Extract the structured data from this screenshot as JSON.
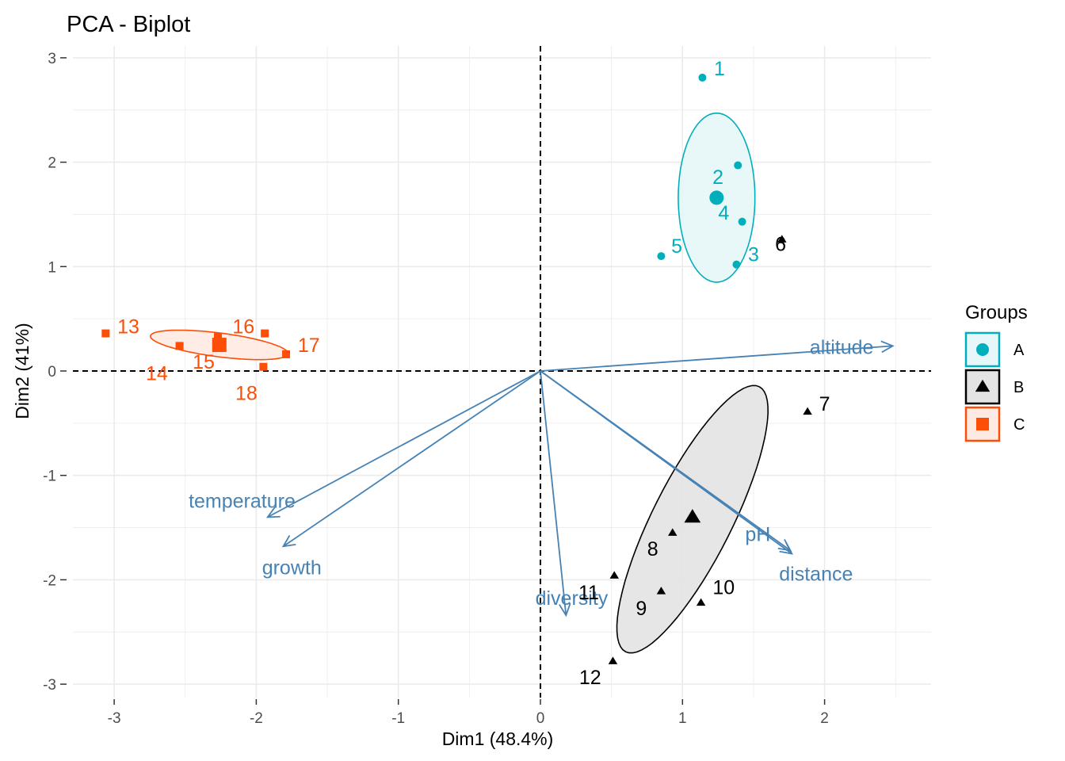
{
  "chart_data": {
    "type": "scatter",
    "subtype": "pca-biplot",
    "title": "PCA - Biplot",
    "xlabel": "Dim1 (48.4%)",
    "ylabel": "Dim2 (41%)",
    "xlim": [
      -3.3,
      2.7
    ],
    "ylim": [
      -3.1,
      3.2
    ],
    "x_ticks": [
      -3,
      -2,
      -1,
      0,
      1,
      2
    ],
    "y_ticks": [
      -3,
      -2,
      -1,
      0,
      1,
      2,
      3
    ],
    "grid": true,
    "reference_lines": {
      "x": 0,
      "y": 0,
      "style": "dashed"
    },
    "legend": {
      "title": "Groups",
      "placement": "right",
      "entries": [
        {
          "label": "A",
          "shape": "circle",
          "color": "#00AFBB"
        },
        {
          "label": "B",
          "shape": "triangle",
          "color": "#000000"
        },
        {
          "label": "C",
          "shape": "square",
          "color": "#FC4E07"
        }
      ]
    },
    "groups": [
      {
        "name": "A",
        "color": "#00AFBB",
        "fill": "#e5f7f8",
        "shape": "circle",
        "points": [
          {
            "label": "1",
            "x": 1.14,
            "y": 2.81,
            "lx": 1.26,
            "ly": 2.9
          },
          {
            "label": "2",
            "x": 1.39,
            "y": 1.97,
            "lx": 1.25,
            "ly": 1.86
          },
          {
            "label": "3",
            "x": 1.38,
            "y": 1.02,
            "lx": 1.5,
            "ly": 1.12
          },
          {
            "label": "4",
            "x": 1.42,
            "y": 1.43,
            "lx": 1.29,
            "ly": 1.52
          },
          {
            "label": "5",
            "x": 0.85,
            "y": 1.1,
            "lx": 0.96,
            "ly": 1.2
          }
        ],
        "centroid": {
          "x": 1.24,
          "y": 1.66
        },
        "ellipse": {
          "center": [
            1.24,
            1.66
          ],
          "major": [
            0.0,
            0.81
          ],
          "minor": [
            0.27,
            0.0
          ]
        }
      },
      {
        "name": "B",
        "color": "#000000",
        "fill": "#e3e3e3",
        "shape": "triangle",
        "points": [
          {
            "label": "6",
            "x": 1.7,
            "y": 1.26,
            "lx": 1.69,
            "ly": 1.22
          },
          {
            "label": "7",
            "x": 1.88,
            "y": -0.39,
            "lx": 2.0,
            "ly": -0.31
          },
          {
            "label": "8",
            "x": 0.93,
            "y": -1.55,
            "lx": 0.79,
            "ly": -1.7
          },
          {
            "label": "9",
            "x": 0.85,
            "y": -2.11,
            "lx": 0.71,
            "ly": -2.27
          },
          {
            "label": "10",
            "x": 1.13,
            "y": -2.22,
            "lx": 1.29,
            "ly": -2.07
          },
          {
            "label": "11",
            "x": 0.52,
            "y": -1.96,
            "lx": 0.34,
            "ly": -2.12
          },
          {
            "label": "12",
            "x": 0.51,
            "y": -2.78,
            "lx": 0.35,
            "ly": -2.93
          }
        ],
        "centroid": {
          "x": 1.07,
          "y": -1.4
        },
        "ellipse": {
          "center": [
            1.07,
            -1.42
          ],
          "major": [
            0.47,
            1.27
          ],
          "minor": [
            0.249,
            -0.17
          ]
        }
      },
      {
        "name": "C",
        "color": "#FC4E07",
        "fill": "#feeae2",
        "shape": "square",
        "points": [
          {
            "label": "13",
            "x": -3.06,
            "y": 0.36,
            "lx": -2.9,
            "ly": 0.43
          },
          {
            "label": "14",
            "x": -2.54,
            "y": 0.24,
            "lx": -2.7,
            "ly": -0.02
          },
          {
            "label": "15",
            "x": -2.27,
            "y": 0.33,
            "lx": -2.37,
            "ly": 0.09
          },
          {
            "label": "16",
            "x": -1.94,
            "y": 0.36,
            "lx": -2.09,
            "ly": 0.43
          },
          {
            "label": "17",
            "x": -1.79,
            "y": 0.16,
            "lx": -1.63,
            "ly": 0.25
          },
          {
            "label": "18",
            "x": -1.95,
            "y": 0.04,
            "lx": -2.07,
            "ly": -0.21
          }
        ],
        "centroid": {
          "x": -2.26,
          "y": 0.25
        },
        "ellipse": {
          "center": [
            -2.26,
            0.25
          ],
          "major": [
            0.485,
            -0.085
          ],
          "minor": [
            -0.011,
            -0.113
          ]
        }
      }
    ],
    "variables": {
      "color": "#4682B4",
      "arrows": [
        {
          "name": "altitude",
          "x": 2.48,
          "y": 0.24,
          "lx": 2.12,
          "ly": 0.23
        },
        {
          "name": "temperature",
          "x": -1.92,
          "y": -1.4,
          "lx": -2.1,
          "ly": -1.24
        },
        {
          "name": "growth",
          "x": -1.81,
          "y": -1.68,
          "lx": -1.75,
          "ly": -1.88
        },
        {
          "name": "diversity",
          "x": 0.18,
          "y": -2.34,
          "lx": 0.22,
          "ly": -2.17
        },
        {
          "name": "pH",
          "x": 1.76,
          "y": -1.72,
          "lx": 1.53,
          "ly": -1.56
        },
        {
          "name": "distance",
          "x": 1.77,
          "y": -1.75,
          "lx": 1.94,
          "ly": -1.94
        }
      ]
    }
  }
}
